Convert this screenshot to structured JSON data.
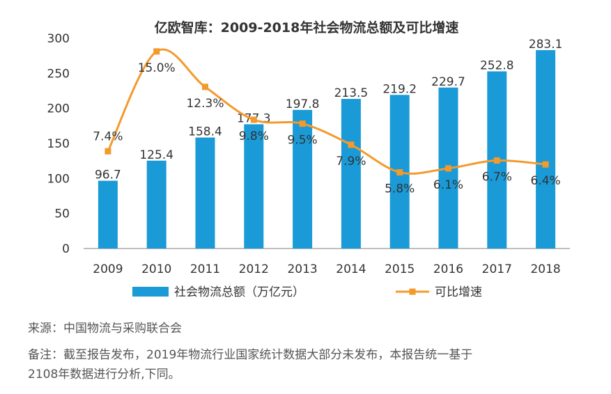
{
  "chart_data": {
    "type": "bar",
    "title": "亿欧智库：2009-2018年社会物流总额及可比增速",
    "categories": [
      "2009",
      "2010",
      "2011",
      "2012",
      "2013",
      "2014",
      "2015",
      "2016",
      "2017",
      "2018"
    ],
    "series": [
      {
        "name": "社会物流总额（万亿元）",
        "kind": "bar",
        "axis": "left",
        "values": [
          96.7,
          125.4,
          158.4,
          177.3,
          197.8,
          213.5,
          219.2,
          229.7,
          252.8,
          283.1
        ],
        "labels": [
          "96.7",
          "125.4",
          "158.4",
          "177.3",
          "197.8",
          "213.5",
          "219.2",
          "229.7",
          "252.8",
          "283.1"
        ]
      },
      {
        "name": "可比增速",
        "kind": "line",
        "axis": "right",
        "values": [
          7.4,
          15.0,
          12.3,
          9.8,
          9.5,
          7.9,
          5.8,
          6.1,
          6.7,
          6.4
        ],
        "labels": [
          "7.4%",
          "15.0%",
          "12.3%",
          "9.8%",
          "9.5%",
          "7.9%",
          "5.8%",
          "6.1%",
          "6.7%",
          "6.4%"
        ]
      }
    ],
    "y_ticks": [
      "0",
      "50",
      "100",
      "150",
      "200",
      "250",
      "300"
    ],
    "ylim": [
      0,
      300
    ],
    "y2lim": [
      0,
      16
    ],
    "legend_position": "bottom",
    "colors": {
      "bar": "#1a9ad6",
      "line": "#f39a2c",
      "axis": "#bfbfbf",
      "text": "#333333"
    }
  },
  "notes": {
    "source": "来源：中国物流与采购联合会",
    "remark_line1": "备注：截至报告发布，2019年物流行业国家统计数据大部分未发布，本报告统一基于",
    "remark_line2": "2108年数据进行分析,下同。"
  }
}
